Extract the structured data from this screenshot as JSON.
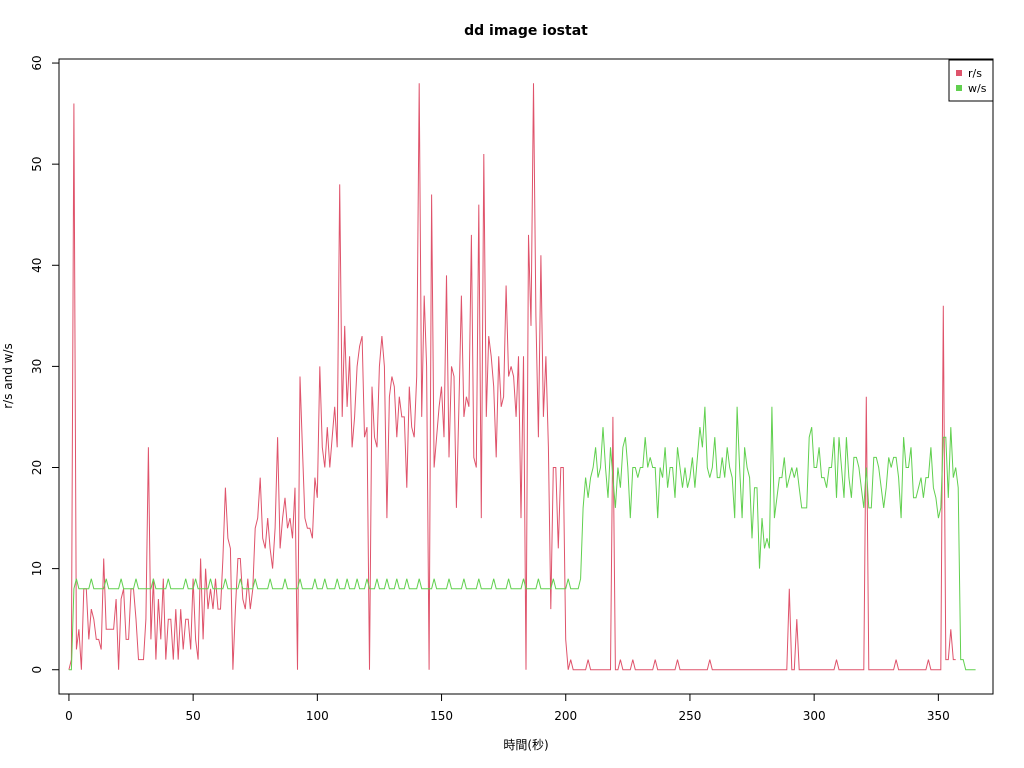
{
  "chart_data": {
    "type": "line",
    "title": "dd image iostat",
    "xlabel": "時間(秒)",
    "ylabel": "r/s and w/s",
    "xlim": [
      -4,
      372
    ],
    "ylim": [
      -2.4,
      60.4
    ],
    "xticks": [
      0,
      50,
      100,
      150,
      200,
      250,
      300,
      350
    ],
    "yticks": [
      0,
      10,
      20,
      30,
      40,
      50,
      60
    ],
    "legend": {
      "position": "top-right"
    },
    "grid": false,
    "series": [
      {
        "name": "r/s",
        "color": "#DF536B",
        "values": [
          0,
          1,
          56,
          2,
          4,
          0,
          8,
          8,
          3,
          6,
          5,
          3,
          3,
          2,
          11,
          4,
          4,
          4,
          4,
          7,
          0,
          7,
          8,
          3,
          3,
          8,
          8,
          5,
          1,
          1,
          1,
          5,
          22,
          3,
          9,
          1,
          7,
          3,
          9,
          1,
          5,
          5,
          1,
          6,
          1,
          6,
          2,
          5,
          5,
          2,
          9,
          3,
          1,
          11,
          3,
          10,
          6,
          8,
          6,
          9,
          6,
          6,
          11,
          18,
          13,
          12,
          0,
          6,
          11,
          11,
          7,
          6,
          9,
          6,
          8,
          14,
          15,
          19,
          13,
          12,
          15,
          12,
          10,
          14,
          23,
          12,
          15,
          17,
          14,
          15,
          13,
          18,
          0,
          29,
          22,
          15,
          14,
          14,
          13,
          19,
          17,
          30,
          22,
          20,
          24,
          20,
          23,
          26,
          22,
          48,
          25,
          34,
          26,
          31,
          22,
          25,
          30,
          32,
          33,
          23,
          24,
          0,
          28,
          23,
          22,
          30,
          33,
          30,
          15,
          27,
          29,
          28,
          23,
          27,
          25,
          25,
          18,
          28,
          24,
          23,
          29,
          58,
          25,
          37,
          30,
          0,
          47,
          20,
          23,
          26,
          28,
          23,
          39,
          21,
          30,
          29,
          16,
          26,
          37,
          25,
          27,
          26,
          43,
          21,
          20,
          46,
          15,
          51,
          25,
          33,
          31,
          28,
          21,
          31,
          26,
          27,
          38,
          29,
          30,
          29,
          25,
          31,
          15,
          31,
          0,
          43,
          34,
          58,
          35,
          23,
          41,
          25,
          31,
          22,
          6,
          20,
          20,
          12,
          20,
          20,
          3,
          0,
          1,
          0,
          0,
          0,
          0,
          0,
          0,
          1,
          0,
          0,
          0,
          0,
          0,
          0,
          0,
          0,
          0,
          25,
          0,
          0,
          1,
          0,
          0,
          0,
          0,
          1,
          0,
          0,
          0,
          0,
          0,
          0,
          0,
          0,
          1,
          0,
          0,
          0,
          0,
          0,
          0,
          0,
          0,
          1,
          0,
          0,
          0,
          0,
          0,
          0,
          0,
          0,
          0,
          0,
          0,
          0,
          1,
          0,
          0,
          0,
          0,
          0,
          0,
          0,
          0,
          0,
          0,
          0,
          0,
          0,
          0,
          0,
          0,
          0,
          0,
          0,
          0,
          0,
          0,
          0,
          0,
          0,
          0,
          0,
          0,
          0,
          0,
          0,
          8,
          0,
          0,
          5,
          0,
          0,
          0,
          0,
          0,
          0,
          0,
          0,
          0,
          0,
          0,
          0,
          0,
          0,
          0,
          1,
          0,
          0,
          0,
          0,
          0,
          0,
          0,
          0,
          0,
          0,
          0,
          27,
          0,
          0,
          0,
          0,
          0,
          0,
          0,
          0,
          0,
          0,
          0,
          1,
          0,
          0,
          0,
          0,
          0,
          0,
          0,
          0,
          0,
          0,
          0,
          0,
          1,
          0,
          0,
          0,
          0,
          0,
          36,
          1,
          1,
          4,
          1,
          1
        ]
      },
      {
        "name": "w/s",
        "color": "#61D04F",
        "values": [
          0,
          0,
          8,
          9,
          8,
          8,
          8,
          8,
          8,
          9,
          8,
          8,
          8,
          8,
          8,
          9,
          8,
          8,
          8,
          8,
          8,
          9,
          8,
          8,
          8,
          8,
          8,
          9,
          8,
          8,
          8,
          8,
          8,
          8,
          9,
          8,
          8,
          8,
          8,
          8,
          9,
          8,
          8,
          8,
          8,
          8,
          8,
          9,
          8,
          8,
          8,
          9,
          8,
          8,
          8,
          8,
          8,
          9,
          8,
          8,
          8,
          8,
          8,
          9,
          8,
          8,
          8,
          8,
          8,
          9,
          8,
          8,
          8,
          8,
          8,
          9,
          8,
          8,
          8,
          8,
          8,
          9,
          8,
          8,
          8,
          8,
          8,
          9,
          8,
          8,
          8,
          8,
          8,
          9,
          8,
          8,
          8,
          8,
          8,
          9,
          8,
          8,
          8,
          9,
          8,
          8,
          8,
          8,
          9,
          8,
          8,
          8,
          9,
          8,
          8,
          8,
          9,
          8,
          8,
          8,
          9,
          8,
          8,
          8,
          9,
          8,
          8,
          8,
          9,
          8,
          8,
          8,
          9,
          8,
          8,
          8,
          9,
          8,
          8,
          8,
          8,
          9,
          8,
          8,
          8,
          8,
          8,
          9,
          8,
          8,
          8,
          8,
          8,
          9,
          8,
          8,
          8,
          8,
          8,
          9,
          8,
          8,
          8,
          8,
          8,
          9,
          8,
          8,
          8,
          8,
          8,
          9,
          8,
          8,
          8,
          8,
          8,
          9,
          8,
          8,
          8,
          8,
          8,
          9,
          8,
          8,
          8,
          8,
          8,
          9,
          8,
          8,
          8,
          8,
          8,
          9,
          8,
          8,
          8,
          8,
          8,
          9,
          8,
          8,
          8,
          8,
          9,
          16,
          19,
          17,
          19,
          20,
          22,
          19,
          20,
          24,
          20,
          17,
          22,
          19,
          16,
          20,
          18,
          22,
          23,
          20,
          15,
          20,
          20,
          19,
          20,
          20,
          23,
          20,
          21,
          20,
          20,
          15,
          20,
          19,
          22,
          18,
          20,
          20,
          17,
          22,
          20,
          18,
          20,
          18,
          19,
          21,
          18,
          21,
          24,
          22,
          26,
          20,
          19,
          20,
          23,
          19,
          19,
          21,
          19,
          22,
          20,
          19,
          15,
          26,
          20,
          15,
          22,
          20,
          19,
          13,
          18,
          18,
          10,
          15,
          12,
          13,
          12,
          26,
          15,
          17,
          19,
          19,
          21,
          18,
          19,
          20,
          19,
          20,
          18,
          16,
          16,
          16,
          23,
          24,
          20,
          20,
          22,
          19,
          19,
          18,
          20,
          20,
          23,
          17,
          23,
          20,
          17,
          23,
          19,
          17,
          21,
          21,
          20,
          18,
          16,
          20,
          16,
          16,
          21,
          21,
          20,
          18,
          16,
          18,
          21,
          20,
          21,
          21,
          19,
          15,
          23,
          20,
          20,
          22,
          17,
          17,
          18,
          19,
          17,
          19,
          19,
          22,
          18,
          17,
          15,
          16,
          23,
          23,
          17,
          24,
          19,
          20,
          18,
          1,
          1,
          0,
          0,
          0,
          0,
          0
        ]
      }
    ]
  }
}
